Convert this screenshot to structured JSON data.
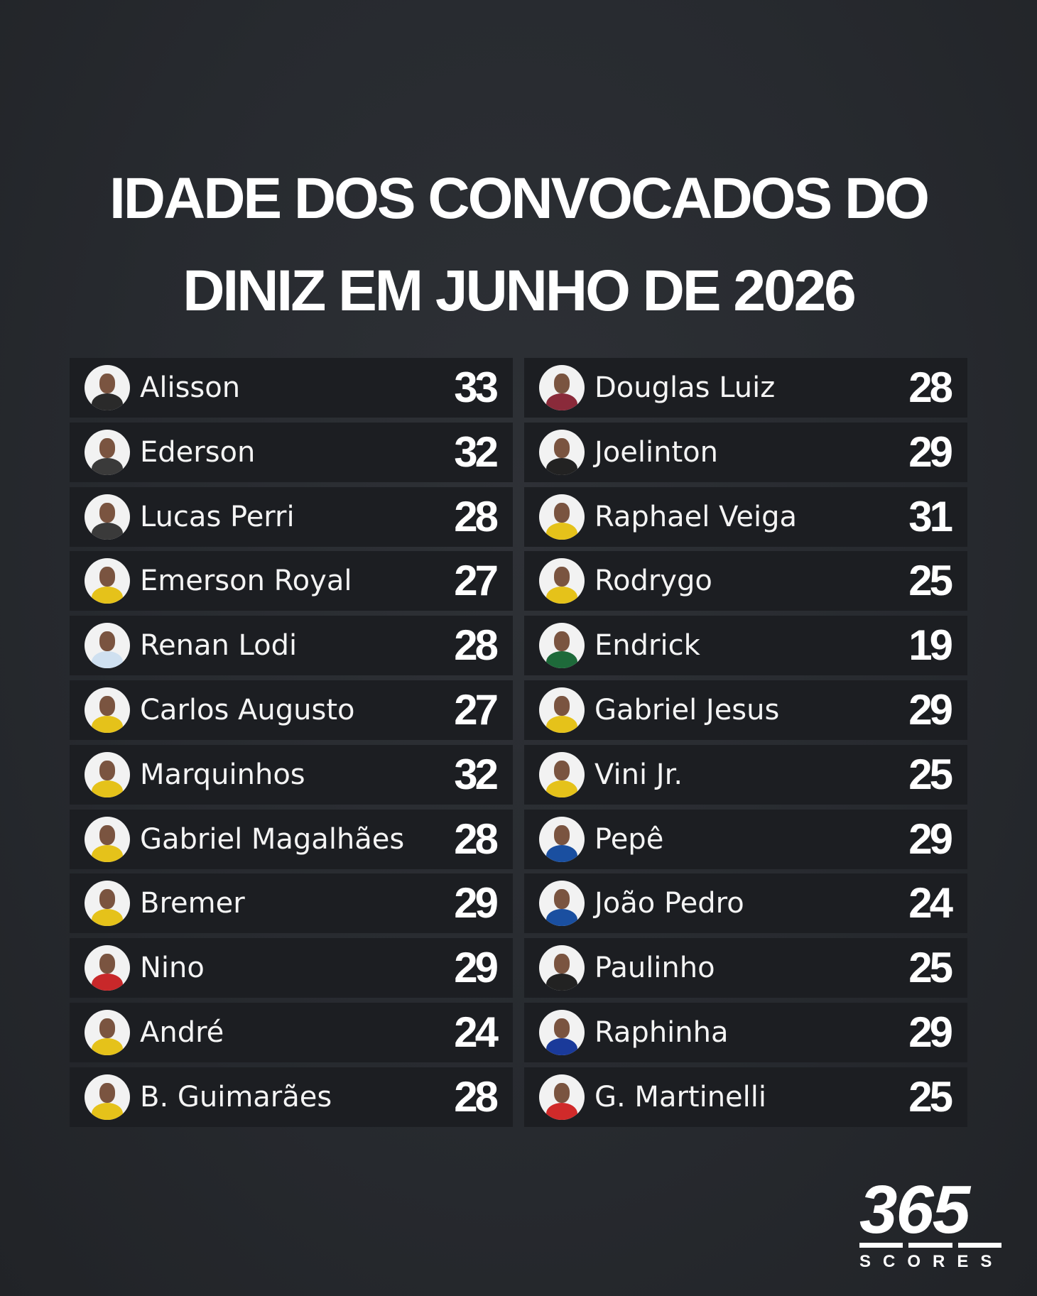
{
  "title": {
    "line1": "IDADE DOS CONVOCADOS DO",
    "line2": "DINIZ EM JUNHO DE 2026"
  },
  "colors": {
    "background": "#272a2f",
    "row": "#1c1e22",
    "text": "#ffffff"
  },
  "players_left": [
    {
      "name": "Alisson",
      "age": "33",
      "shirt": "#2a2a2a"
    },
    {
      "name": "Ederson",
      "age": "32",
      "shirt": "#3a3a3a"
    },
    {
      "name": "Lucas Perri",
      "age": "28",
      "shirt": "#3a3a3a"
    },
    {
      "name": "Emerson Royal",
      "age": "27",
      "shirt": "#e5c21a"
    },
    {
      "name": "Renan Lodi",
      "age": "28",
      "shirt": "#cfe0f0"
    },
    {
      "name": "Carlos Augusto",
      "age": "27",
      "shirt": "#e5c21a"
    },
    {
      "name": "Marquinhos",
      "age": "32",
      "shirt": "#e5c21a"
    },
    {
      "name": "Gabriel Magalhães",
      "age": "28",
      "shirt": "#e5c21a"
    },
    {
      "name": "Bremer",
      "age": "29",
      "shirt": "#e5c21a"
    },
    {
      "name": "Nino",
      "age": "29",
      "shirt": "#c8282a"
    },
    {
      "name": "André",
      "age": "24",
      "shirt": "#e5c21a"
    },
    {
      "name": "B. Guimarães",
      "age": "28",
      "shirt": "#e5c21a"
    }
  ],
  "players_right": [
    {
      "name": "Douglas Luiz",
      "age": "28",
      "shirt": "#8a2a3a"
    },
    {
      "name": "Joelinton",
      "age": "29",
      "shirt": "#222222"
    },
    {
      "name": "Raphael Veiga",
      "age": "31",
      "shirt": "#e5c21a"
    },
    {
      "name": "Rodrygo",
      "age": "25",
      "shirt": "#e5c21a"
    },
    {
      "name": "Endrick",
      "age": "19",
      "shirt": "#1e6a3a"
    },
    {
      "name": "Gabriel Jesus",
      "age": "29",
      "shirt": "#e5c21a"
    },
    {
      "name": "Vini Jr.",
      "age": "25",
      "shirt": "#e5c21a"
    },
    {
      "name": "Pepê",
      "age": "29",
      "shirt": "#1a4fa0"
    },
    {
      "name": "João Pedro",
      "age": "24",
      "shirt": "#1a4fa0"
    },
    {
      "name": "Paulinho",
      "age": "25",
      "shirt": "#222222"
    },
    {
      "name": "Raphinha",
      "age": "29",
      "shirt": "#1a3a9a"
    },
    {
      "name": "G. Martinelli",
      "age": "25",
      "shirt": "#d02a2a"
    }
  ],
  "logo": {
    "number": "365",
    "text": "SCORES"
  }
}
